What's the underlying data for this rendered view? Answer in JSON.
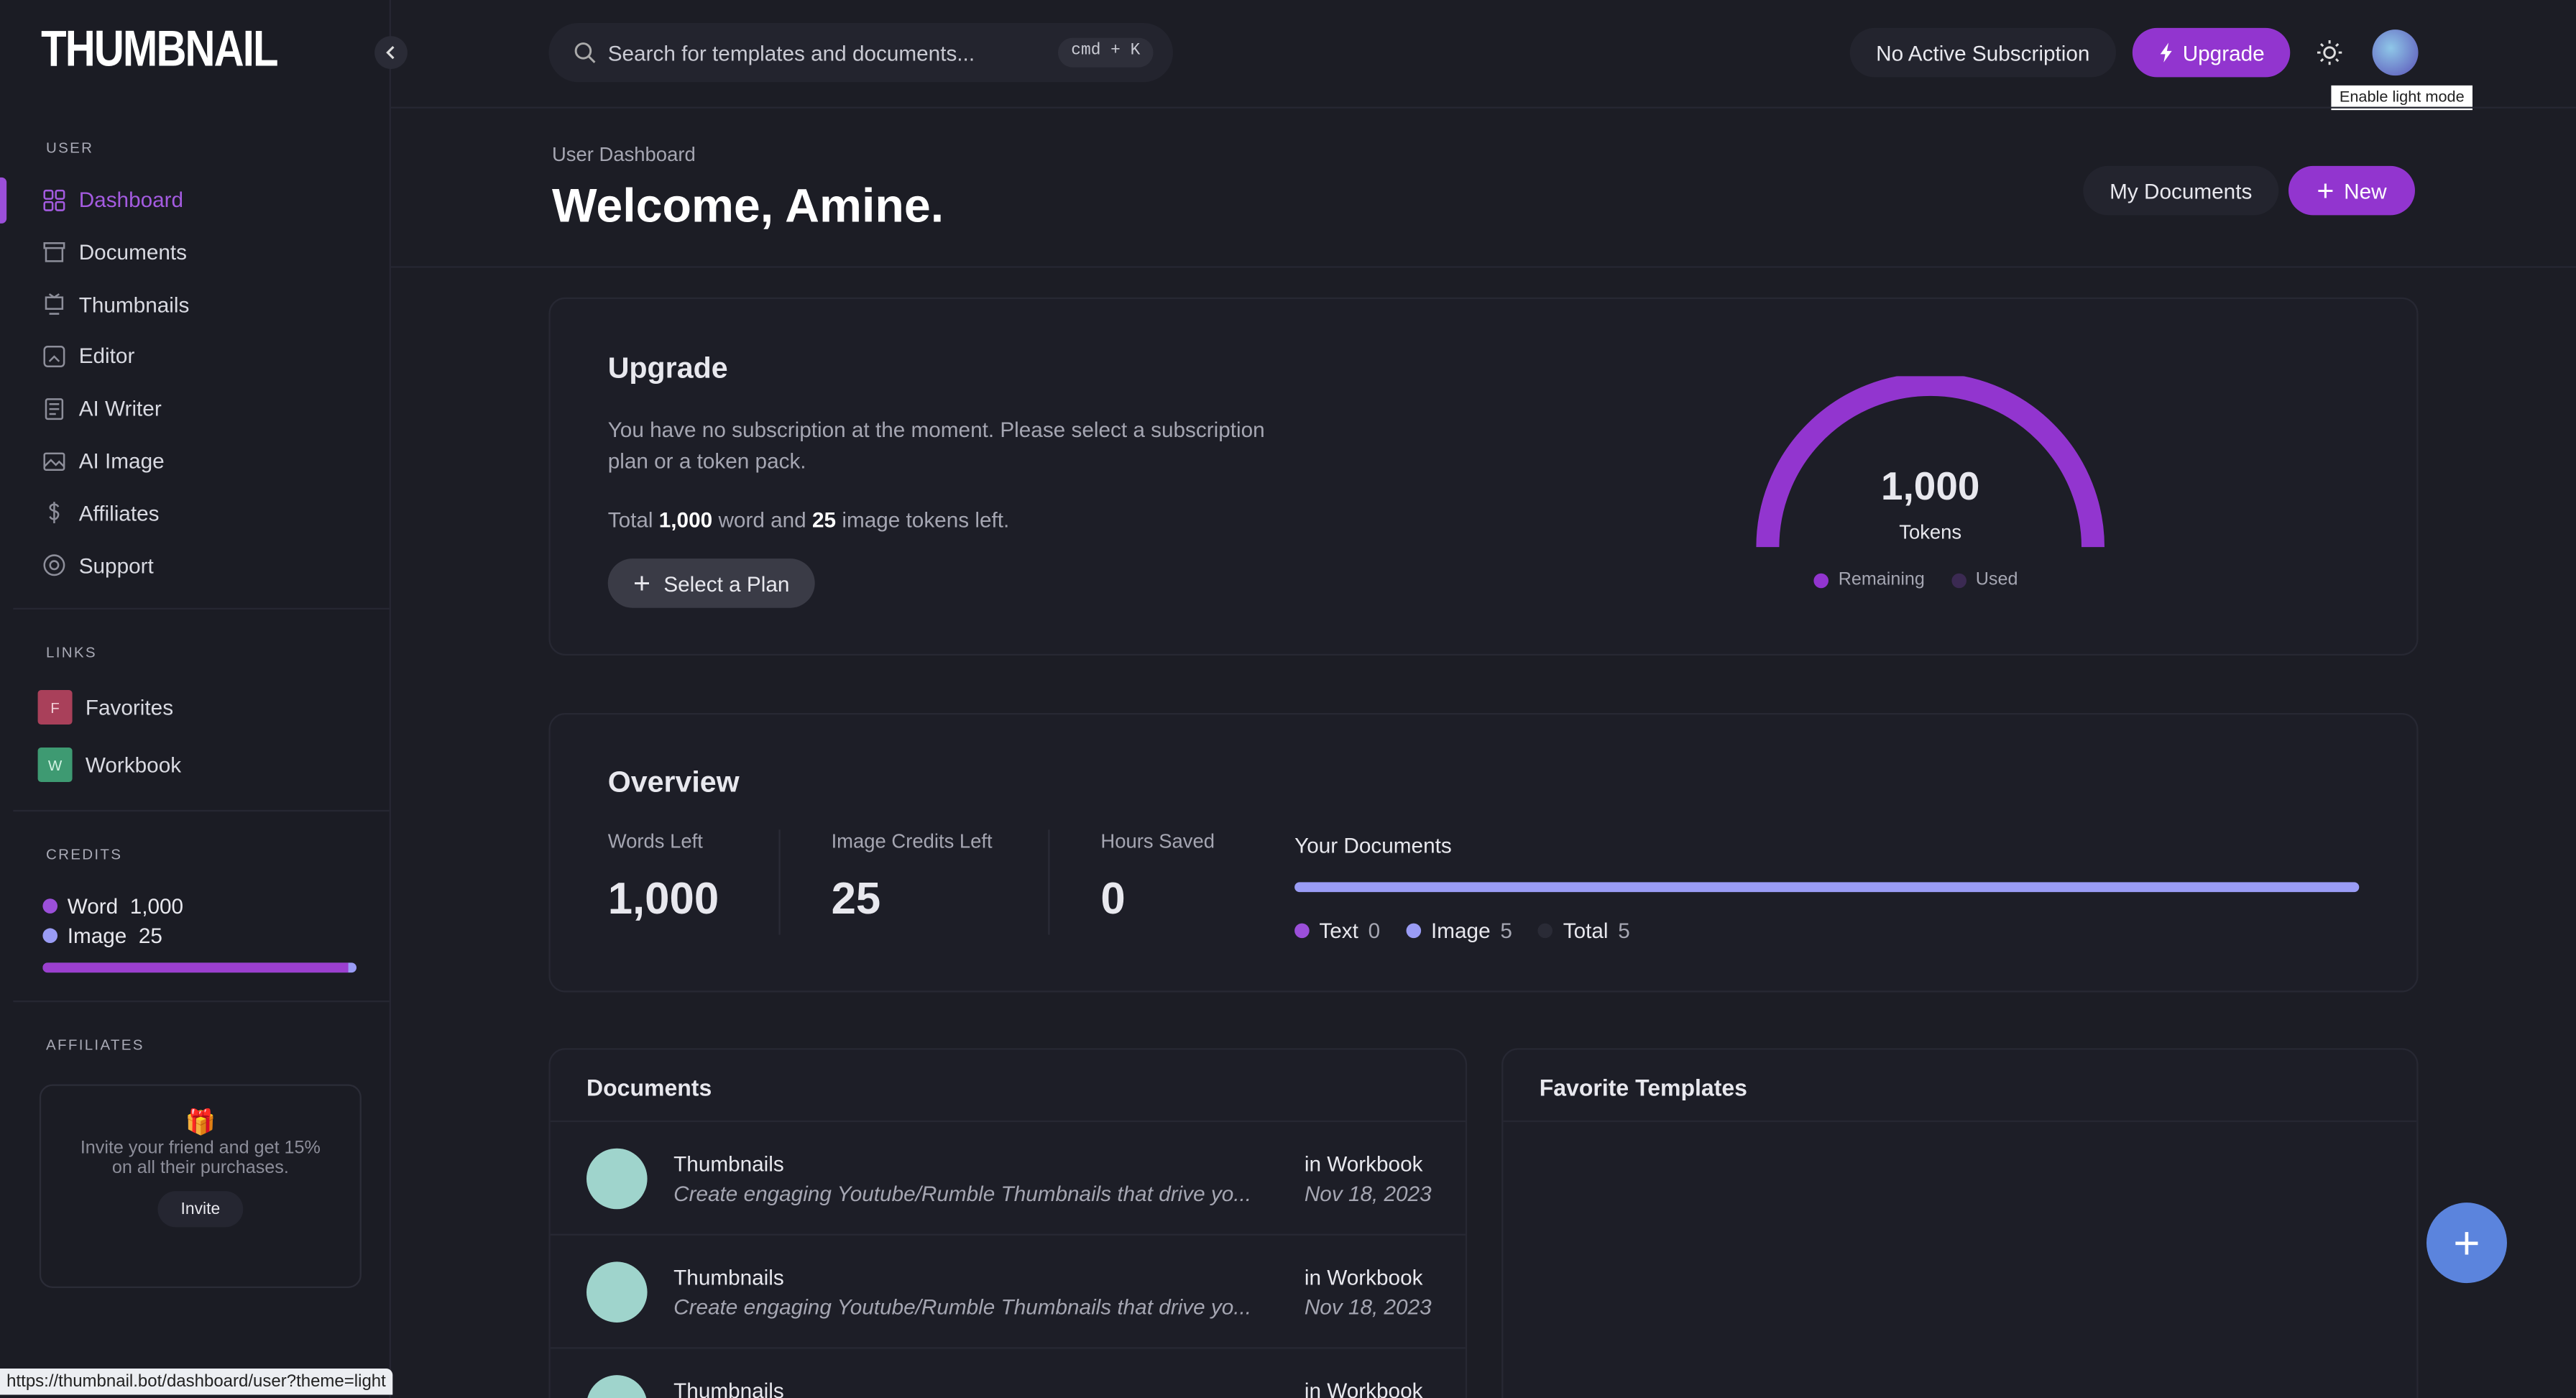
{
  "logo": "THUMBNAIL",
  "topbar": {
    "search_placeholder": "Search for templates and documents...",
    "shortcut": "cmd + K",
    "subscription": "No Active Subscription",
    "upgrade": "Upgrade",
    "tooltip": "Enable light mode"
  },
  "sidebar": {
    "user_section": "USER",
    "items": [
      "Dashboard",
      "Documents",
      "Thumbnails",
      "Editor",
      "AI Writer",
      "AI Image",
      "Affiliates",
      "Support"
    ],
    "links_section": "LINKS",
    "links": [
      {
        "initial": "F",
        "label": "Favorites"
      },
      {
        "initial": "W",
        "label": "Workbook"
      }
    ],
    "credits_section": "CREDITS",
    "credits": [
      {
        "label": "Word",
        "value": "1,000"
      },
      {
        "label": "Image",
        "value": "25"
      }
    ],
    "affiliates_section": "AFFILIATES",
    "affiliates_text": "Invite your friend and get 15% on all their purchases.",
    "invite": "Invite"
  },
  "header": {
    "breadcrumb": "User Dashboard",
    "title": "Welcome, Amine.",
    "my_documents": "My Documents",
    "new": "New"
  },
  "upgrade_card": {
    "title": "Upgrade",
    "description": "You have no subscription at the moment. Please select a subscription plan or a token pack.",
    "total_prefix": "Total",
    "words": "1,000",
    "middle": "word and",
    "images": "25",
    "suffix": "image tokens left.",
    "button": "Select a Plan",
    "gauge_value": "1,000",
    "gauge_label": "Tokens",
    "legend": [
      "Remaining",
      "Used"
    ]
  },
  "overview": {
    "title": "Overview",
    "stats": [
      {
        "label": "Words Left",
        "value": "1,000"
      },
      {
        "label": "Image Credits Left",
        "value": "25"
      },
      {
        "label": "Hours Saved",
        "value": "0"
      }
    ],
    "documents_title": "Your Documents",
    "legend": [
      {
        "label": "Text",
        "value": "0"
      },
      {
        "label": "Image",
        "value": "5"
      },
      {
        "label": "Total",
        "value": "5"
      }
    ]
  },
  "documents": {
    "title": "Documents",
    "rows": [
      {
        "name": "Thumbnails",
        "description": "Create engaging Youtube/Rumble Thumbnails that drive yo...",
        "folder": "in Workbook",
        "date": "Nov 18, 2023"
      },
      {
        "name": "Thumbnails",
        "description": "Create engaging Youtube/Rumble Thumbnails that drive yo...",
        "folder": "in Workbook",
        "date": "Nov 18, 2023"
      },
      {
        "name": "Thumbnails",
        "folder": "in Workbook"
      }
    ]
  },
  "favorite_templates": {
    "title": "Favorite Templates"
  },
  "status_url": "https://thumbnail.bot/dashboard/user?theme=light"
}
